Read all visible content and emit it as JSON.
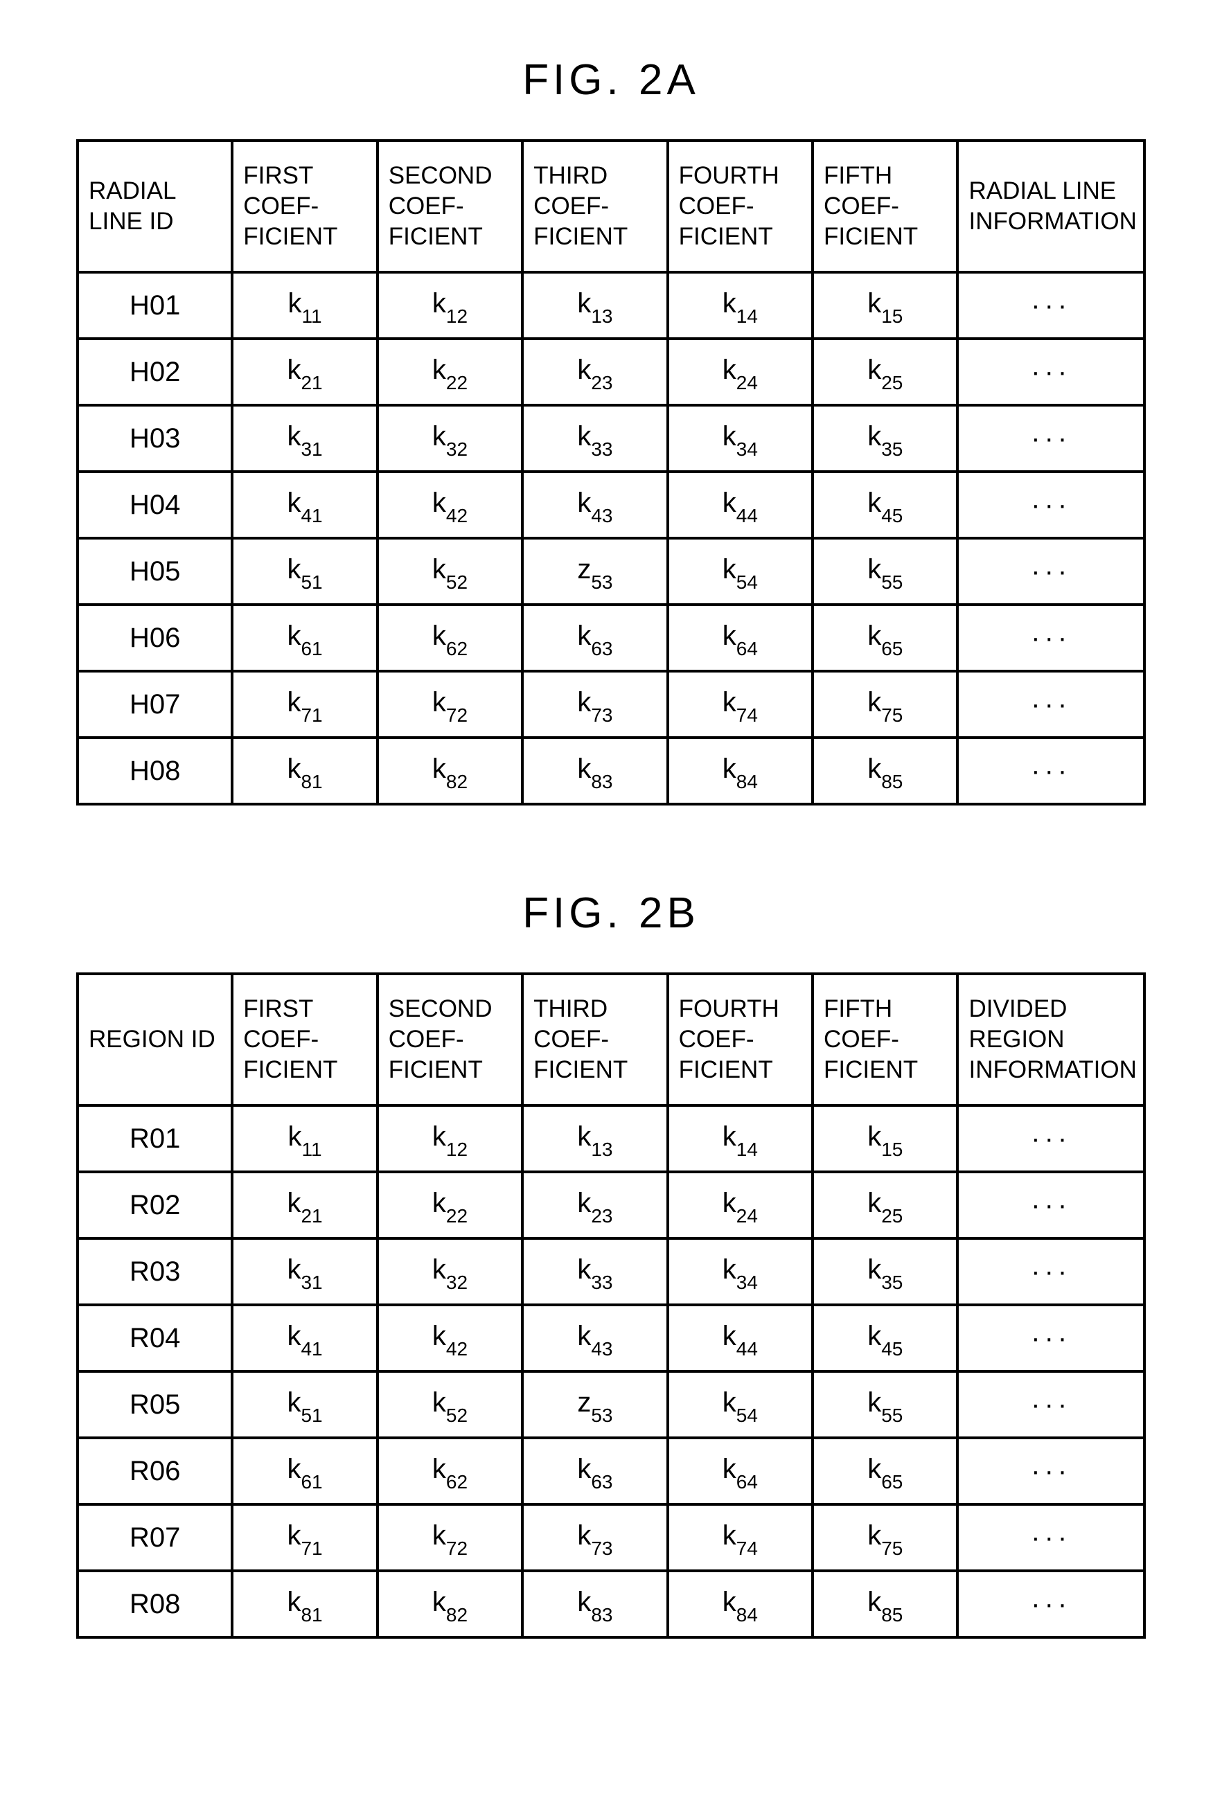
{
  "figures": [
    {
      "title": "FIG. 2A",
      "headers": [
        "RADIAL LINE ID",
        "FIRST COEF-FICIENT",
        "SECOND COEF-FICIENT",
        "THIRD COEF-FICIENT",
        "FOURTH COEF-FICIENT",
        "FIFTH COEF-FICIENT",
        "RADIAL LINE INFORMATION"
      ],
      "rows": [
        {
          "id": "H01",
          "c": [
            {
              "b": "k",
              "s": "11"
            },
            {
              "b": "k",
              "s": "12"
            },
            {
              "b": "k",
              "s": "13"
            },
            {
              "b": "k",
              "s": "14"
            },
            {
              "b": "k",
              "s": "15"
            }
          ],
          "info": "···"
        },
        {
          "id": "H02",
          "c": [
            {
              "b": "k",
              "s": "21"
            },
            {
              "b": "k",
              "s": "22"
            },
            {
              "b": "k",
              "s": "23"
            },
            {
              "b": "k",
              "s": "24"
            },
            {
              "b": "k",
              "s": "25"
            }
          ],
          "info": "···"
        },
        {
          "id": "H03",
          "c": [
            {
              "b": "k",
              "s": "31"
            },
            {
              "b": "k",
              "s": "32"
            },
            {
              "b": "k",
              "s": "33"
            },
            {
              "b": "k",
              "s": "34"
            },
            {
              "b": "k",
              "s": "35"
            }
          ],
          "info": "···"
        },
        {
          "id": "H04",
          "c": [
            {
              "b": "k",
              "s": "41"
            },
            {
              "b": "k",
              "s": "42"
            },
            {
              "b": "k",
              "s": "43"
            },
            {
              "b": "k",
              "s": "44"
            },
            {
              "b": "k",
              "s": "45"
            }
          ],
          "info": "···"
        },
        {
          "id": "H05",
          "c": [
            {
              "b": "k",
              "s": "51"
            },
            {
              "b": "k",
              "s": "52"
            },
            {
              "b": "z",
              "s": "53"
            },
            {
              "b": "k",
              "s": "54"
            },
            {
              "b": "k",
              "s": "55"
            }
          ],
          "info": "···"
        },
        {
          "id": "H06",
          "c": [
            {
              "b": "k",
              "s": "61"
            },
            {
              "b": "k",
              "s": "62"
            },
            {
              "b": "k",
              "s": "63"
            },
            {
              "b": "k",
              "s": "64"
            },
            {
              "b": "k",
              "s": "65"
            }
          ],
          "info": "···"
        },
        {
          "id": "H07",
          "c": [
            {
              "b": "k",
              "s": "71"
            },
            {
              "b": "k",
              "s": "72"
            },
            {
              "b": "k",
              "s": "73"
            },
            {
              "b": "k",
              "s": "74"
            },
            {
              "b": "k",
              "s": "75"
            }
          ],
          "info": "···"
        },
        {
          "id": "H08",
          "c": [
            {
              "b": "k",
              "s": "81"
            },
            {
              "b": "k",
              "s": "82"
            },
            {
              "b": "k",
              "s": "83"
            },
            {
              "b": "k",
              "s": "84"
            },
            {
              "b": "k",
              "s": "85"
            }
          ],
          "info": "···"
        }
      ]
    },
    {
      "title": "FIG. 2B",
      "headers": [
        "REGION ID",
        "FIRST COEF-FICIENT",
        "SECOND COEF-FICIENT",
        "THIRD COEF-FICIENT",
        "FOURTH COEF-FICIENT",
        "FIFTH COEF-FICIENT",
        "DIVIDED REGION INFORMATION"
      ],
      "rows": [
        {
          "id": "R01",
          "c": [
            {
              "b": "k",
              "s": "11"
            },
            {
              "b": "k",
              "s": "12"
            },
            {
              "b": "k",
              "s": "13"
            },
            {
              "b": "k",
              "s": "14"
            },
            {
              "b": "k",
              "s": "15"
            }
          ],
          "info": "···"
        },
        {
          "id": "R02",
          "c": [
            {
              "b": "k",
              "s": "21"
            },
            {
              "b": "k",
              "s": "22"
            },
            {
              "b": "k",
              "s": "23"
            },
            {
              "b": "k",
              "s": "24"
            },
            {
              "b": "k",
              "s": "25"
            }
          ],
          "info": "···"
        },
        {
          "id": "R03",
          "c": [
            {
              "b": "k",
              "s": "31"
            },
            {
              "b": "k",
              "s": "32"
            },
            {
              "b": "k",
              "s": "33"
            },
            {
              "b": "k",
              "s": "34"
            },
            {
              "b": "k",
              "s": "35"
            }
          ],
          "info": "···"
        },
        {
          "id": "R04",
          "c": [
            {
              "b": "k",
              "s": "41"
            },
            {
              "b": "k",
              "s": "42"
            },
            {
              "b": "k",
              "s": "43"
            },
            {
              "b": "k",
              "s": "44"
            },
            {
              "b": "k",
              "s": "45"
            }
          ],
          "info": "···"
        },
        {
          "id": "R05",
          "c": [
            {
              "b": "k",
              "s": "51"
            },
            {
              "b": "k",
              "s": "52"
            },
            {
              "b": "z",
              "s": "53"
            },
            {
              "b": "k",
              "s": "54"
            },
            {
              "b": "k",
              "s": "55"
            }
          ],
          "info": "···"
        },
        {
          "id": "R06",
          "c": [
            {
              "b": "k",
              "s": "61"
            },
            {
              "b": "k",
              "s": "62"
            },
            {
              "b": "k",
              "s": "63"
            },
            {
              "b": "k",
              "s": "64"
            },
            {
              "b": "k",
              "s": "65"
            }
          ],
          "info": "···"
        },
        {
          "id": "R07",
          "c": [
            {
              "b": "k",
              "s": "71"
            },
            {
              "b": "k",
              "s": "72"
            },
            {
              "b": "k",
              "s": "73"
            },
            {
              "b": "k",
              "s": "74"
            },
            {
              "b": "k",
              "s": "75"
            }
          ],
          "info": "···"
        },
        {
          "id": "R08",
          "c": [
            {
              "b": "k",
              "s": "81"
            },
            {
              "b": "k",
              "s": "82"
            },
            {
              "b": "k",
              "s": "83"
            },
            {
              "b": "k",
              "s": "84"
            },
            {
              "b": "k",
              "s": "85"
            }
          ],
          "info": "···"
        }
      ]
    }
  ]
}
